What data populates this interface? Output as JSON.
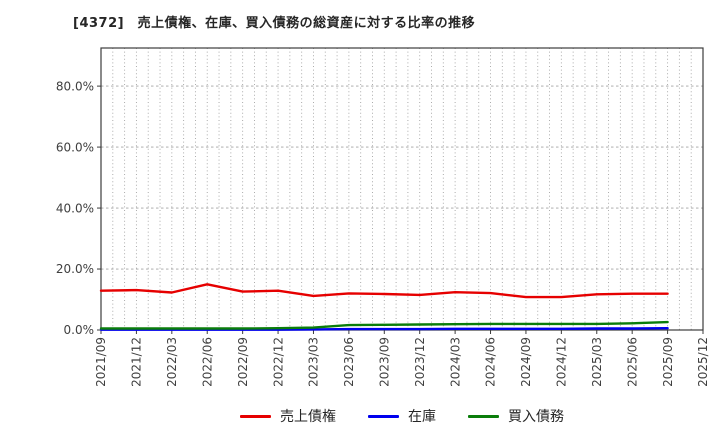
{
  "title": "[4372]　売上債権、在庫、買入債務の総資産に対する比率の推移",
  "chart_data": {
    "type": "line",
    "title": "[4372]　売上債権、在庫、買入債務の総資産に対する比率の推移",
    "x_tick_labels": [
      "2021/09",
      "2021/12",
      "2022/03",
      "2022/06",
      "2022/09",
      "2022/12",
      "2023/03",
      "2023/06",
      "2023/09",
      "2023/12",
      "2024/03",
      "2024/06",
      "2024/09",
      "2024/12",
      "2025/03",
      "2025/06",
      "2025/09",
      "2025/12"
    ],
    "y_tick_labels": [
      "0.0%",
      "20.0%",
      "40.0%",
      "60.0%",
      "80.0%"
    ],
    "y_tick_values": [
      0,
      20,
      40,
      60,
      80
    ],
    "ylim": [
      0,
      92.5
    ],
    "unit": "percent",
    "grid": {
      "horizontal_major": true,
      "vertical_monthly": true
    },
    "legend_position": "bottom-center",
    "series": [
      {
        "name": "売上債権",
        "color": "#e60000",
        "values": [
          12.9,
          13.1,
          12.3,
          15.0,
          12.6,
          12.9,
          11.2,
          12.0,
          11.8,
          11.5,
          12.4,
          12.1,
          10.8,
          10.8,
          11.7,
          11.9,
          11.9
        ]
      },
      {
        "name": "在庫",
        "color": "#0000ee",
        "values": [
          0.1,
          0.1,
          0.1,
          0.1,
          0.1,
          0.1,
          0.2,
          0.3,
          0.3,
          0.3,
          0.4,
          0.4,
          0.4,
          0.4,
          0.5,
          0.5,
          0.6
        ]
      },
      {
        "name": "買入債務",
        "color": "#0a7d0a",
        "values": [
          0.5,
          0.5,
          0.5,
          0.5,
          0.5,
          0.6,
          0.8,
          1.6,
          1.7,
          1.8,
          1.9,
          2.0,
          2.0,
          2.0,
          2.0,
          2.2,
          2.6
        ]
      }
    ]
  },
  "colors": {
    "grid": "#a3a3a3",
    "axis_border": "#3c3c3c",
    "tick_label": "#404040"
  }
}
